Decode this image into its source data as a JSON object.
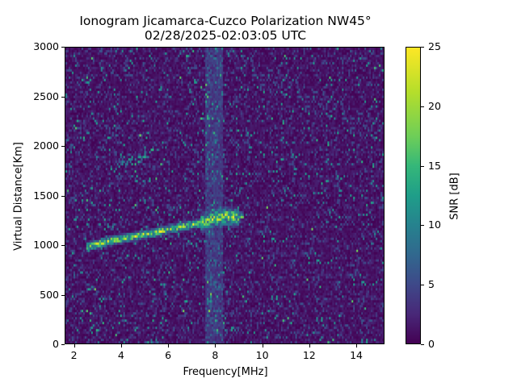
{
  "chart_data": {
    "type": "heatmap",
    "title": "Ionogram Jicamarca-Cuzco Polarization NW45°",
    "subtitle": "02/28/2025-02:03:05 UTC",
    "xlabel": "Frequency[MHz]",
    "ylabel": "Virtual Distance[Km]",
    "xlim": [
      1.6,
      15.2
    ],
    "ylim": [
      0,
      3000
    ],
    "xticks": [
      2,
      4,
      6,
      8,
      10,
      12,
      14
    ],
    "yticks": [
      0,
      500,
      1000,
      1500,
      2000,
      2500,
      3000
    ],
    "colorbar": {
      "label": "SNR [dB]",
      "colormap": "viridis",
      "range": [
        0,
        25
      ],
      "ticks": [
        0,
        5,
        10,
        15,
        20,
        25
      ]
    },
    "grid": false,
    "features": [
      {
        "name": "main echo trace",
        "description": "bright band rising from ~1000 km at 3 MHz to ~1300 km at 8.5 MHz",
        "points": [
          [
            2.5,
            980
          ],
          [
            3.5,
            1040
          ],
          [
            4.5,
            1080
          ],
          [
            5.5,
            1130
          ],
          [
            6.5,
            1180
          ],
          [
            7.5,
            1230
          ],
          [
            8.0,
            1270
          ],
          [
            8.5,
            1290
          ],
          [
            9.2,
            1280
          ]
        ],
        "peak_snr_db": 25
      },
      {
        "name": "faint second-hop trace",
        "description": "weak trace near 1800-1950 km between 3.5 and 5.5 MHz",
        "points": [
          [
            3.5,
            1780
          ],
          [
            4.5,
            1850
          ],
          [
            5.5,
            1960
          ]
        ],
        "peak_snr_db": 15
      },
      {
        "name": "interference column",
        "description": "vertical band of elevated noise near 7.8-8.2 MHz across all ranges",
        "x_range": [
          7.6,
          8.3
        ]
      }
    ],
    "background_snr_db": [
      0,
      3
    ]
  },
  "colors": {
    "background": "#440b5a",
    "echo_peak": "#fde725"
  }
}
